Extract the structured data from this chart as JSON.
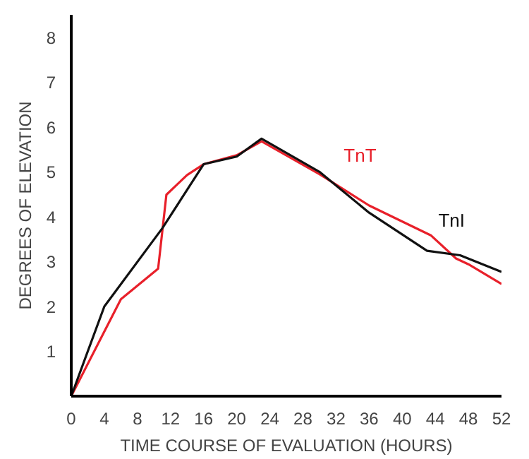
{
  "chart_data": {
    "type": "line",
    "xlabel": "TIME COURSE OF EVALUATION (HOURS)",
    "ylabel": "DEGREES OF ELEVATION",
    "xlim": [
      0,
      52
    ],
    "ylim": [
      0,
      8.5
    ],
    "xticks": [
      0,
      4,
      8,
      12,
      16,
      20,
      24,
      28,
      32,
      36,
      40,
      44,
      48,
      52
    ],
    "yticks": [
      1,
      2,
      3,
      4,
      5,
      6,
      7,
      8
    ],
    "grid": false,
    "marker": "none",
    "line_style": "solid",
    "series": [
      {
        "name": "TnT",
        "color": "#e8202a",
        "x": [
          0,
          6,
          10.5,
          11.5,
          14,
          16,
          20,
          23,
          30,
          36,
          43.5,
          46.5,
          48,
          52
        ],
        "values": [
          0,
          2.16,
          2.84,
          4.49,
          4.93,
          5.17,
          5.37,
          5.68,
          4.95,
          4.25,
          3.58,
          3.07,
          2.94,
          2.5
        ]
      },
      {
        "name": "TnI",
        "color": "#111111",
        "x": [
          0,
          4,
          11,
          16,
          20,
          23,
          30,
          36,
          43,
          47,
          52
        ],
        "values": [
          0,
          2.0,
          3.74,
          5.17,
          5.34,
          5.74,
          5.0,
          4.09,
          3.24,
          3.14,
          2.77
        ]
      }
    ]
  }
}
